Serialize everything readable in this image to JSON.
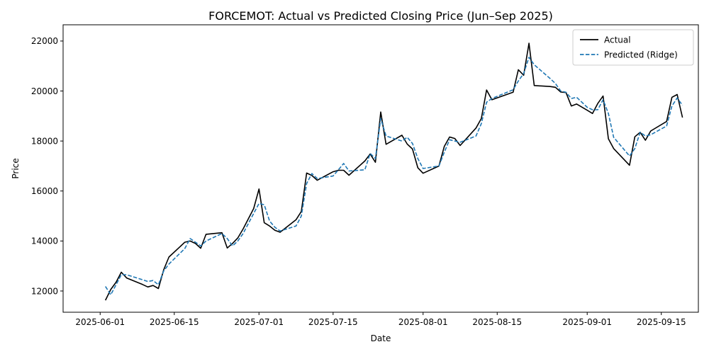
{
  "chart_data": {
    "type": "line",
    "title": "FORCEMOT: Actual vs Predicted Closing Price (Jun–Sep 2025)",
    "xlabel": "Date",
    "ylabel": "Price",
    "xlim": [
      "2025-05-25",
      "2025-09-22"
    ],
    "ylim": [
      11150,
      22650
    ],
    "x_ticks": [
      "2025-06-01",
      "2025-06-15",
      "2025-07-01",
      "2025-07-15",
      "2025-08-01",
      "2025-08-15",
      "2025-09-01",
      "2025-09-15"
    ],
    "y_ticks": [
      12000,
      14000,
      16000,
      18000,
      20000,
      22000
    ],
    "grid": false,
    "legend_position": "top-right",
    "series": [
      {
        "name": "Actual",
        "color": "#000000",
        "style": "solid",
        "points": [
          [
            "2025-06-02",
            11630
          ],
          [
            "2025-06-03",
            12060
          ],
          [
            "2025-06-04",
            12350
          ],
          [
            "2025-06-05",
            12750
          ],
          [
            "2025-06-06",
            12520
          ],
          [
            "2025-06-09",
            12260
          ],
          [
            "2025-06-10",
            12160
          ],
          [
            "2025-06-11",
            12220
          ],
          [
            "2025-06-12",
            12100
          ],
          [
            "2025-06-13",
            12850
          ],
          [
            "2025-06-14",
            13360
          ],
          [
            "2025-06-17",
            13950
          ],
          [
            "2025-06-18",
            14000
          ],
          [
            "2025-06-19",
            13900
          ],
          [
            "2025-06-20",
            13710
          ],
          [
            "2025-06-21",
            14270
          ],
          [
            "2025-06-24",
            14330
          ],
          [
            "2025-06-25",
            13720
          ],
          [
            "2025-06-26",
            13900
          ],
          [
            "2025-06-27",
            14120
          ],
          [
            "2025-06-28",
            14480
          ],
          [
            "2025-06-30",
            15300
          ],
          [
            "2025-07-01",
            16080
          ],
          [
            "2025-07-02",
            14730
          ],
          [
            "2025-07-03",
            14600
          ],
          [
            "2025-07-04",
            14430
          ],
          [
            "2025-07-05",
            14350
          ],
          [
            "2025-07-08",
            14850
          ],
          [
            "2025-07-09",
            15180
          ],
          [
            "2025-07-10",
            16720
          ],
          [
            "2025-07-11",
            16620
          ],
          [
            "2025-07-12",
            16430
          ],
          [
            "2025-07-15",
            16770
          ],
          [
            "2025-07-16",
            16830
          ],
          [
            "2025-07-17",
            16830
          ],
          [
            "2025-07-18",
            16630
          ],
          [
            "2025-07-21",
            17200
          ],
          [
            "2025-07-22",
            17480
          ],
          [
            "2025-07-23",
            17150
          ],
          [
            "2025-07-24",
            19160
          ],
          [
            "2025-07-25",
            17870
          ],
          [
            "2025-07-28",
            18230
          ],
          [
            "2025-07-29",
            17880
          ],
          [
            "2025-07-30",
            17680
          ],
          [
            "2025-07-31",
            16930
          ],
          [
            "2025-08-01",
            16710
          ],
          [
            "2025-08-04",
            17000
          ],
          [
            "2025-08-05",
            17780
          ],
          [
            "2025-08-06",
            18160
          ],
          [
            "2025-08-07",
            18100
          ],
          [
            "2025-08-08",
            17820
          ],
          [
            "2025-08-11",
            18520
          ],
          [
            "2025-08-12",
            18900
          ],
          [
            "2025-08-13",
            20040
          ],
          [
            "2025-08-14",
            19650
          ],
          [
            "2025-08-18",
            19950
          ],
          [
            "2025-08-19",
            20850
          ],
          [
            "2025-08-20",
            20630
          ],
          [
            "2025-08-21",
            21910
          ],
          [
            "2025-08-22",
            20220
          ],
          [
            "2025-08-25",
            20180
          ],
          [
            "2025-08-26",
            20150
          ],
          [
            "2025-08-27",
            19960
          ],
          [
            "2025-08-28",
            19940
          ],
          [
            "2025-08-29",
            19400
          ],
          [
            "2025-08-30",
            19480
          ],
          [
            "2025-09-01",
            19230
          ],
          [
            "2025-09-02",
            19100
          ],
          [
            "2025-09-03",
            19500
          ],
          [
            "2025-09-04",
            19800
          ],
          [
            "2025-09-05",
            18090
          ],
          [
            "2025-09-06",
            17700
          ],
          [
            "2025-09-09",
            17030
          ],
          [
            "2025-09-10",
            18170
          ],
          [
            "2025-09-11",
            18350
          ],
          [
            "2025-09-12",
            18030
          ],
          [
            "2025-09-13",
            18400
          ],
          [
            "2025-09-16",
            18780
          ],
          [
            "2025-09-17",
            19750
          ],
          [
            "2025-09-18",
            19860
          ],
          [
            "2025-09-19",
            18940
          ]
        ]
      },
      {
        "name": "Predicted (Ridge)",
        "color": "#1f77b4",
        "style": "dashed",
        "points": [
          [
            "2025-06-02",
            12180
          ],
          [
            "2025-06-03",
            11850
          ],
          [
            "2025-06-04",
            12250
          ],
          [
            "2025-06-05",
            12650
          ],
          [
            "2025-06-06",
            12650
          ],
          [
            "2025-06-09",
            12450
          ],
          [
            "2025-06-10",
            12380
          ],
          [
            "2025-06-11",
            12420
          ],
          [
            "2025-06-12",
            12250
          ],
          [
            "2025-06-13",
            12800
          ],
          [
            "2025-06-14",
            13080
          ],
          [
            "2025-06-17",
            13700
          ],
          [
            "2025-06-18",
            14100
          ],
          [
            "2025-06-19",
            13950
          ],
          [
            "2025-06-20",
            13800
          ],
          [
            "2025-06-21",
            14000
          ],
          [
            "2025-06-24",
            14300
          ],
          [
            "2025-06-25",
            14100
          ],
          [
            "2025-06-26",
            13800
          ],
          [
            "2025-06-27",
            14000
          ],
          [
            "2025-06-28",
            14300
          ],
          [
            "2025-06-30",
            15100
          ],
          [
            "2025-07-01",
            15500
          ],
          [
            "2025-07-02",
            15450
          ],
          [
            "2025-07-03",
            14800
          ],
          [
            "2025-07-04",
            14550
          ],
          [
            "2025-07-05",
            14400
          ],
          [
            "2025-07-08",
            14600
          ],
          [
            "2025-07-09",
            15000
          ],
          [
            "2025-07-10",
            16300
          ],
          [
            "2025-07-11",
            16700
          ],
          [
            "2025-07-12",
            16500
          ],
          [
            "2025-07-15",
            16600
          ],
          [
            "2025-07-16",
            16850
          ],
          [
            "2025-07-17",
            17100
          ],
          [
            "2025-07-18",
            16800
          ],
          [
            "2025-07-21",
            16850
          ],
          [
            "2025-07-22",
            17500
          ],
          [
            "2025-07-23",
            17300
          ],
          [
            "2025-07-24",
            18900
          ],
          [
            "2025-07-25",
            18200
          ],
          [
            "2025-07-28",
            18000
          ],
          [
            "2025-07-29",
            18150
          ],
          [
            "2025-07-30",
            17900
          ],
          [
            "2025-07-31",
            17300
          ],
          [
            "2025-08-01",
            16900
          ],
          [
            "2025-08-04",
            17000
          ],
          [
            "2025-08-05",
            17550
          ],
          [
            "2025-08-06",
            18050
          ],
          [
            "2025-08-07",
            18000
          ],
          [
            "2025-08-08",
            17950
          ],
          [
            "2025-08-11",
            18200
          ],
          [
            "2025-08-12",
            18700
          ],
          [
            "2025-08-13",
            19550
          ],
          [
            "2025-08-14",
            19700
          ],
          [
            "2025-08-18",
            20050
          ],
          [
            "2025-08-19",
            20400
          ],
          [
            "2025-08-20",
            20700
          ],
          [
            "2025-08-21",
            21350
          ],
          [
            "2025-08-22",
            21050
          ],
          [
            "2025-08-25",
            20500
          ],
          [
            "2025-08-26",
            20300
          ],
          [
            "2025-08-27",
            20000
          ],
          [
            "2025-08-28",
            19950
          ],
          [
            "2025-08-29",
            19700
          ],
          [
            "2025-08-30",
            19750
          ],
          [
            "2025-09-01",
            19350
          ],
          [
            "2025-09-02",
            19250
          ],
          [
            "2025-09-03",
            19250
          ],
          [
            "2025-09-04",
            19650
          ],
          [
            "2025-09-05",
            19100
          ],
          [
            "2025-09-06",
            18150
          ],
          [
            "2025-09-09",
            17400
          ],
          [
            "2025-09-10",
            17700
          ],
          [
            "2025-09-11",
            18350
          ],
          [
            "2025-09-12",
            18200
          ],
          [
            "2025-09-13",
            18250
          ],
          [
            "2025-09-16",
            18600
          ],
          [
            "2025-09-17",
            19400
          ],
          [
            "2025-09-18",
            19720
          ],
          [
            "2025-09-19",
            19430
          ]
        ]
      }
    ]
  }
}
